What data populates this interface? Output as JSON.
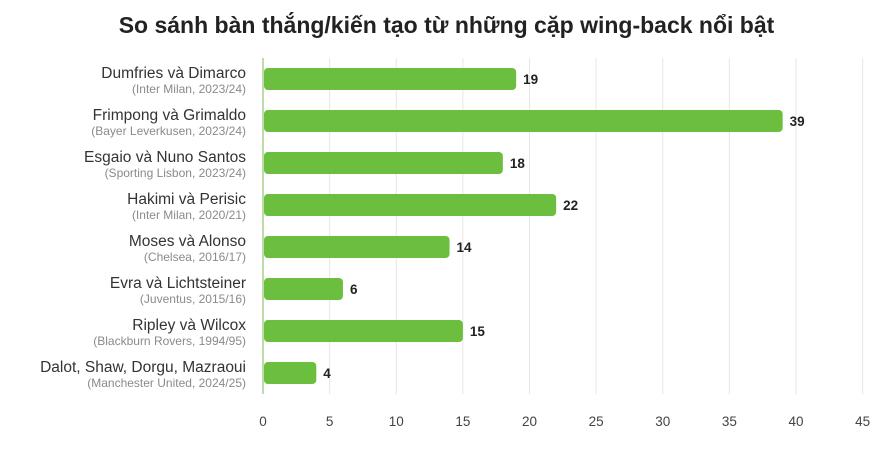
{
  "chart_data": {
    "type": "bar",
    "orientation": "horizontal",
    "title": "So sánh bàn thắng/kiến tạo từ những cặp wing-back nổi bật",
    "categories": [
      {
        "name": "Dumfries và Dimarco",
        "sub": "(Inter Milan, 2023/24)"
      },
      {
        "name": "Frimpong và Grimaldo",
        "sub": "(Bayer Leverkusen, 2023/24)"
      },
      {
        "name": "Esgaio và Nuno Santos",
        "sub": "(Sporting Lisbon, 2023/24)"
      },
      {
        "name": "Hakimi và Perisic",
        "sub": "(Inter Milan, 2020/21)"
      },
      {
        "name": "Moses và Alonso",
        "sub": "(Chelsea, 2016/17)"
      },
      {
        "name": "Evra và Lichtsteiner",
        "sub": "(Juventus, 2015/16)"
      },
      {
        "name": "Ripley và Wilcox",
        "sub": "(Blackburn Rovers, 1994/95)"
      },
      {
        "name": "Dalot, Shaw, Dorgu, Mazraoui",
        "sub": "(Manchester United, 2024/25)"
      }
    ],
    "values": [
      19,
      39,
      18,
      22,
      14,
      6,
      15,
      4
    ],
    "xticks": [
      "0",
      "5",
      "10",
      "15",
      "20",
      "25",
      "30",
      "35",
      "40",
      "45"
    ],
    "xlim": [
      0,
      45
    ],
    "grid": true,
    "xlabel": "",
    "ylabel": "",
    "bar_color": "#6cbf3e",
    "axis_color": "#a8d08d",
    "grid_color": "#e6e6e6"
  }
}
